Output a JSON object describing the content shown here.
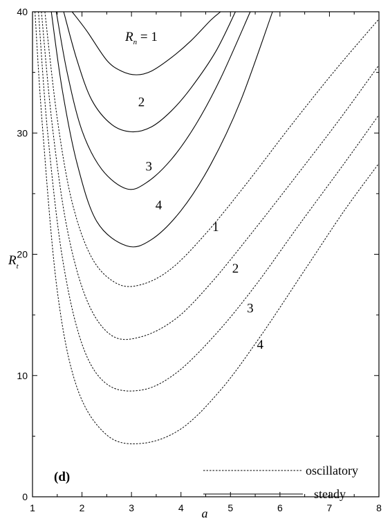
{
  "chart_data": {
    "type": "line",
    "xlabel": "a",
    "ylabel": "R",
    "ylabel_subscript": "t",
    "xlim": [
      1,
      8
    ],
    "ylim": [
      0,
      40
    ],
    "xticks": [
      1,
      2,
      3,
      4,
      5,
      6,
      7,
      8
    ],
    "yticks": [
      0,
      10,
      20,
      30,
      40
    ],
    "panel_label": "(d)",
    "legend": {
      "position": "bottom-right",
      "entries": [
        {
          "label": "oscillatory",
          "style": "dotted"
        },
        {
          "label": "steady",
          "style": "solid"
        }
      ]
    },
    "series": [
      {
        "label": "Rn = 1",
        "style": "solid",
        "x": [
          1.8,
          2.1,
          2.5,
          2.8,
          3.1,
          3.4,
          3.8,
          4.2,
          4.6,
          4.8
        ],
        "y": [
          40,
          38.4,
          36.0,
          35.1,
          34.8,
          35.1,
          36.2,
          37.6,
          39.3,
          40
        ]
      },
      {
        "label": "2",
        "style": "solid",
        "x": [
          1.63,
          1.9,
          2.2,
          2.6,
          3.0,
          3.4,
          3.8,
          4.2,
          4.7,
          5.1
        ],
        "y": [
          40,
          36.0,
          32.7,
          30.7,
          30.1,
          30.5,
          31.8,
          33.7,
          36.7,
          40
        ]
      },
      {
        "label": "3",
        "style": "solid",
        "x": [
          1.48,
          1.7,
          2.0,
          2.4,
          2.9,
          3.3,
          3.8,
          4.3,
          4.8,
          5.4
        ],
        "y": [
          40,
          35.0,
          30.2,
          27.0,
          25.4,
          25.9,
          27.8,
          30.7,
          34.5,
          40
        ]
      },
      {
        "label": "4",
        "style": "solid",
        "x": [
          1.38,
          1.6,
          1.9,
          2.3,
          2.9,
          3.4,
          4.0,
          4.6,
          5.2,
          5.85
        ],
        "y": [
          40,
          33.6,
          27.5,
          22.7,
          20.7,
          21.2,
          23.6,
          27.4,
          32.6,
          40
        ]
      },
      {
        "label": "1",
        "style": "dotted",
        "x": [
          1.25,
          1.5,
          1.8,
          2.2,
          2.7,
          3.2,
          3.8,
          4.5,
          5.3,
          6.2,
          7.1,
          8.0
        ],
        "y": [
          40,
          31.2,
          24.3,
          19.7,
          17.6,
          17.5,
          18.8,
          21.7,
          25.7,
          30.5,
          35.1,
          39.4
        ]
      },
      {
        "label": "2",
        "style": "dotted",
        "x": [
          1.18,
          1.4,
          1.7,
          2.1,
          2.6,
          3.2,
          3.9,
          4.6,
          5.4,
          6.3,
          7.2,
          8.0
        ],
        "y": [
          40,
          30.6,
          22.1,
          16.2,
          13.3,
          13.2,
          14.7,
          17.6,
          21.6,
          26.3,
          31.1,
          35.6
        ]
      },
      {
        "label": "3",
        "style": "dotted",
        "x": [
          1.12,
          1.3,
          1.6,
          2.0,
          2.5,
          3.2,
          3.9,
          4.7,
          5.5,
          6.4,
          7.3,
          8.0
        ],
        "y": [
          40,
          30.3,
          19.8,
          12.6,
          9.3,
          8.8,
          10.2,
          13.4,
          17.4,
          22.5,
          27.5,
          31.5
        ]
      },
      {
        "label": "4",
        "style": "dotted",
        "x": [
          1.05,
          1.2,
          1.5,
          1.9,
          2.5,
          3.2,
          4.0,
          4.8,
          5.6,
          6.5,
          7.3,
          8.0
        ],
        "y": [
          40,
          30.6,
          17.0,
          9.0,
          5.1,
          4.4,
          5.6,
          8.8,
          13.2,
          18.7,
          23.6,
          27.5
        ]
      }
    ]
  },
  "annotations": [
    {
      "text": "R",
      "sub": "n",
      "suffix": " = 1",
      "x": 3.2,
      "y": 37.6
    },
    {
      "text": "2",
      "x": 3.2,
      "y": 32.2
    },
    {
      "text": "3",
      "x": 3.35,
      "y": 26.9
    },
    {
      "text": "4",
      "x": 3.55,
      "y": 23.7
    },
    {
      "text": "1",
      "x": 4.7,
      "y": 21.9
    },
    {
      "text": "2",
      "x": 5.1,
      "y": 18.5
    },
    {
      "text": "3",
      "x": 5.4,
      "y": 15.2
    },
    {
      "text": "4",
      "x": 5.6,
      "y": 12.2
    }
  ]
}
